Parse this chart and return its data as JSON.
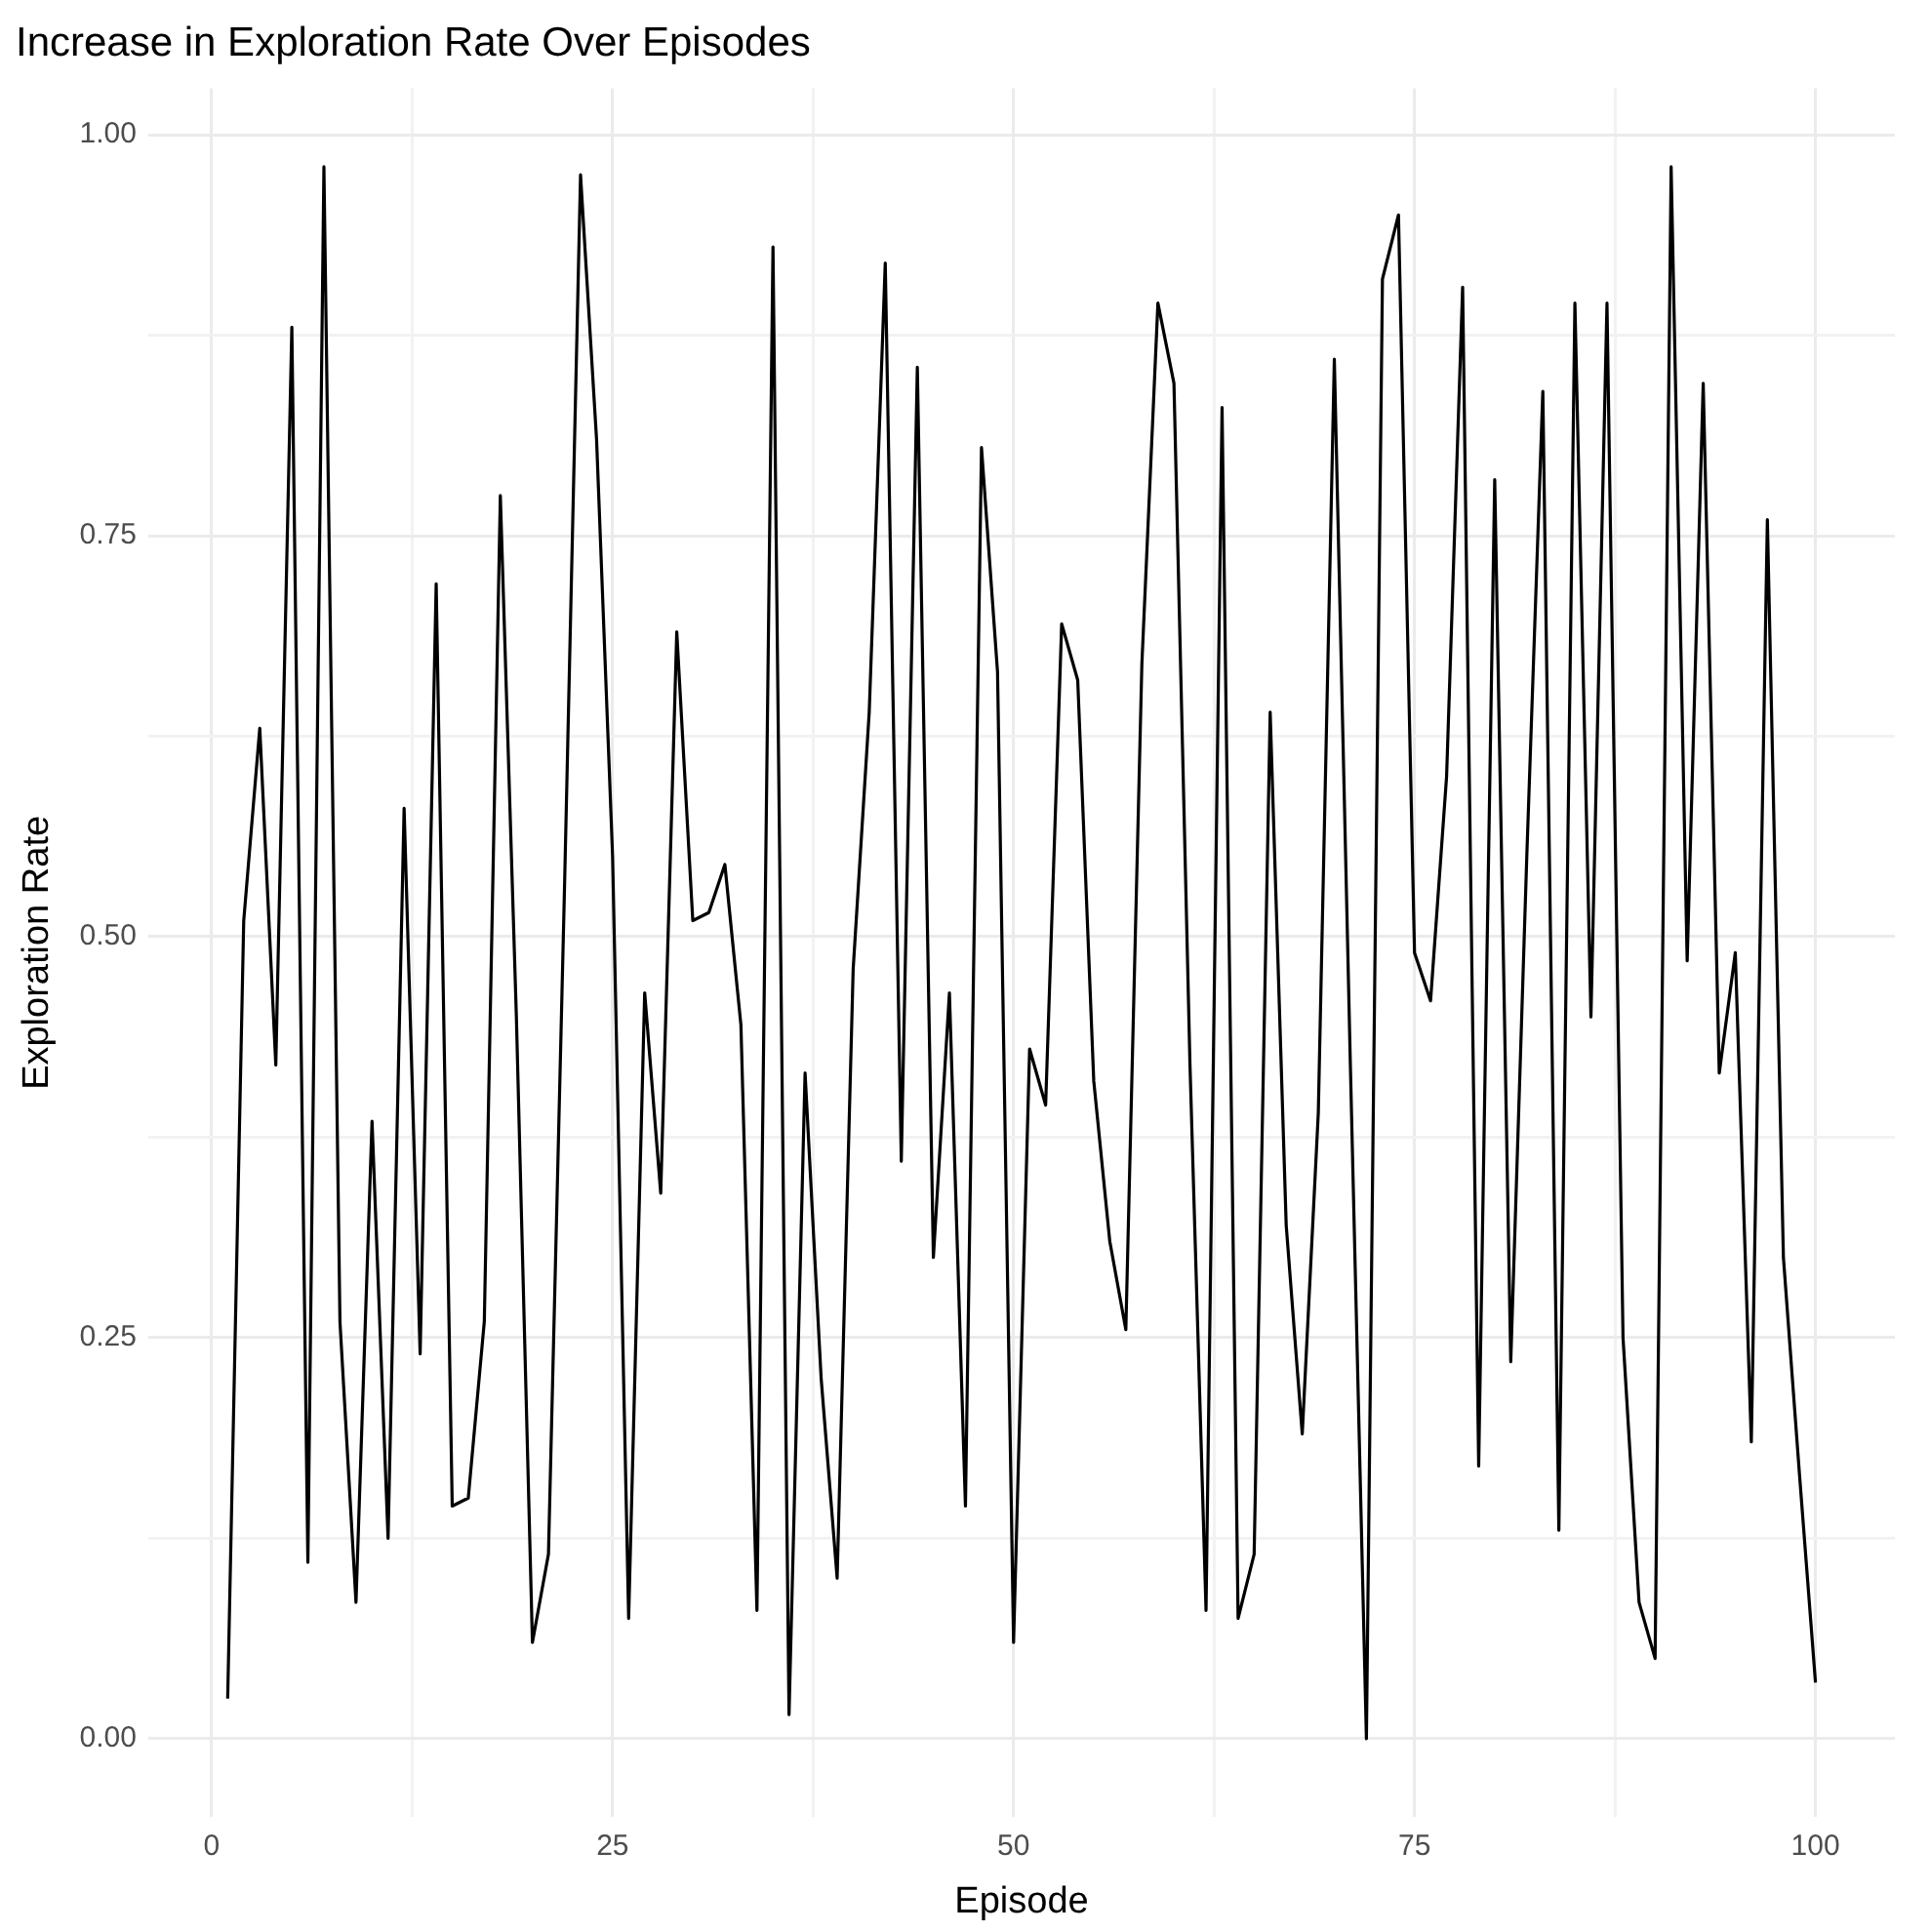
{
  "chart_data": {
    "type": "line",
    "title": "Increase in Exploration Rate Over Episodes",
    "xlabel": "Episode",
    "ylabel": "Exploration Rate",
    "x": [
      1,
      2,
      3,
      4,
      5,
      6,
      7,
      8,
      9,
      10,
      11,
      12,
      13,
      14,
      15,
      16,
      17,
      18,
      19,
      20,
      21,
      22,
      23,
      24,
      25,
      26,
      27,
      28,
      29,
      30,
      31,
      32,
      33,
      34,
      35,
      36,
      37,
      38,
      39,
      40,
      41,
      42,
      43,
      44,
      45,
      46,
      47,
      48,
      49,
      50,
      51,
      52,
      53,
      54,
      55,
      56,
      57,
      58,
      59,
      60,
      61,
      62,
      63,
      64,
      65,
      66,
      67,
      68,
      69,
      70,
      71,
      72,
      73,
      74,
      75,
      76,
      77,
      78,
      79,
      80,
      81,
      82,
      83,
      84,
      85,
      86,
      87,
      88,
      89,
      90,
      91,
      92,
      93,
      94,
      95,
      96,
      97,
      98,
      99,
      100
    ],
    "series": [
      {
        "color": "#000000",
        "values": [
          0.025,
          0.51,
          0.63,
          0.42,
          0.88,
          0.11,
          0.98,
          0.26,
          0.085,
          0.385,
          0.125,
          0.58,
          0.24,
          0.72,
          0.145,
          0.15,
          0.26,
          0.775,
          0.45,
          0.06,
          0.115,
          0.53,
          0.975,
          0.81,
          0.55,
          0.075,
          0.465,
          0.34,
          0.69,
          0.51,
          0.515,
          0.545,
          0.445,
          0.08,
          0.93,
          0.015,
          0.415,
          0.225,
          0.1,
          0.48,
          0.64,
          0.92,
          0.36,
          0.855,
          0.3,
          0.465,
          0.145,
          0.805,
          0.665,
          0.06,
          0.43,
          0.395,
          0.695,
          0.66,
          0.41,
          0.31,
          0.255,
          0.67,
          0.895,
          0.845,
          0.42,
          0.08,
          0.83,
          0.075,
          0.115,
          0.64,
          0.32,
          0.19,
          0.39,
          0.86,
          0.42,
          0.0,
          0.91,
          0.95,
          0.49,
          0.46,
          0.6,
          0.905,
          0.17,
          0.785,
          0.235,
          0.55,
          0.84,
          0.13,
          0.895,
          0.45,
          0.895,
          0.25,
          0.085,
          0.05,
          0.98,
          0.485,
          0.845,
          0.415,
          0.49,
          0.185,
          0.76,
          0.3,
          0.165,
          0.035
        ]
      }
    ],
    "xlim": [
      -3.95,
      104.95
    ],
    "xticks": [
      0,
      {
        "value": 12.5,
        "label": null
      },
      25,
      {
        "value": 37.5,
        "label": null
      },
      50,
      {
        "value": 62.5,
        "label": null
      },
      75,
      {
        "value": 87.5,
        "label": null
      },
      100
    ],
    "ylim": [
      -0.049,
      1.029
    ],
    "yticks": [
      {
        "value": 0,
        "label": "0.00"
      },
      {
        "value": 0.125,
        "label": null
      },
      {
        "value": 0.25,
        "label": "0.25"
      },
      {
        "value": 0.375,
        "label": null
      },
      {
        "value": 0.5,
        "label": "0.50"
      },
      {
        "value": 0.625,
        "label": null
      },
      {
        "value": 0.75,
        "label": "0.75"
      },
      {
        "value": 0.875,
        "label": null
      },
      {
        "value": 1,
        "label": "1.00"
      }
    ],
    "grid": true,
    "legend": false,
    "marker": "none",
    "line_style": "solid"
  }
}
